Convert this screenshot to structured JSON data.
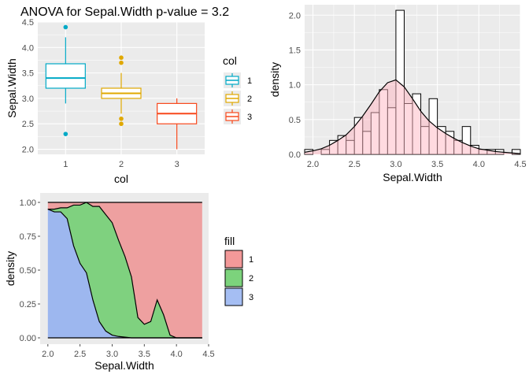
{
  "colors": {
    "panel_bg": "#EBEBEB",
    "grid": "#FFFFFF",
    "axis_text": "#4D4D4D",
    "title_text": "#000000",
    "group1": "#00A9C6",
    "group2": "#E0A800",
    "group3": "#F8481C",
    "fill1": "#F08080",
    "fill2": "#5BC85B",
    "fill3": "#8FAEF0",
    "hist_fill": "#FFFFFF",
    "density_fill": "#FFB6C1"
  },
  "chart_data": [
    {
      "type": "box",
      "title": "ANOVA for Sepal.Width p-value = 3.2",
      "xlabel": "col",
      "ylabel": "Sepal.Width",
      "categories": [
        "1",
        "2",
        "3"
      ],
      "ylim": [
        1.9,
        4.5
      ],
      "yticks": [
        "2.0",
        "2.5",
        "3.0",
        "3.5",
        "4.0",
        "4.5"
      ],
      "legend": {
        "title": "col",
        "labels": [
          "1",
          "2",
          "3"
        ],
        "position": "right"
      },
      "boxes": [
        {
          "group": "1",
          "lower_whisker": 2.9,
          "q1": 3.2,
          "median": 3.4,
          "q3": 3.68,
          "upper_whisker": 4.2,
          "outliers": [
            4.4,
            2.3
          ]
        },
        {
          "group": "2",
          "lower_whisker": 2.7,
          "q1": 3.0,
          "median": 3.1,
          "q3": 3.2,
          "upper_whisker": 3.5,
          "outliers": [
            3.8,
            3.7,
            2.6,
            2.5
          ]
        },
        {
          "group": "3",
          "lower_whisker": 2.0,
          "q1": 2.5,
          "median": 2.7,
          "q3": 2.9,
          "upper_whisker": 3.0,
          "outliers": []
        }
      ]
    },
    {
      "type": "histogram",
      "xlabel": "Sepal.Width",
      "ylabel": "density",
      "xlim": [
        1.9,
        4.5
      ],
      "ylim": [
        0,
        2.15
      ],
      "xticks": [
        "2.0",
        "2.5",
        "3.0",
        "3.5",
        "4.0",
        "4.5"
      ],
      "yticks": [
        "0.0",
        "0.5",
        "1.0",
        "1.5",
        "2.0"
      ],
      "bins": [
        {
          "x0": 1.9,
          "x1": 2.0,
          "density": 0.07
        },
        {
          "x0": 2.0,
          "x1": 2.1,
          "density": 0.0
        },
        {
          "x0": 2.1,
          "x1": 2.2,
          "density": 0.07
        },
        {
          "x0": 2.2,
          "x1": 2.3,
          "density": 0.2
        },
        {
          "x0": 2.3,
          "x1": 2.4,
          "density": 0.27
        },
        {
          "x0": 2.4,
          "x1": 2.5,
          "density": 0.2
        },
        {
          "x0": 2.5,
          "x1": 2.6,
          "density": 0.53
        },
        {
          "x0": 2.6,
          "x1": 2.7,
          "density": 0.33
        },
        {
          "x0": 2.7,
          "x1": 2.8,
          "density": 0.6
        },
        {
          "x0": 2.8,
          "x1": 2.9,
          "density": 0.93
        },
        {
          "x0": 2.9,
          "x1": 3.0,
          "density": 0.67
        },
        {
          "x0": 3.0,
          "x1": 3.1,
          "density": 2.07
        },
        {
          "x0": 3.1,
          "x1": 3.2,
          "density": 0.73
        },
        {
          "x0": 3.2,
          "x1": 3.3,
          "density": 0.87
        },
        {
          "x0": 3.3,
          "x1": 3.4,
          "density": 0.4
        },
        {
          "x0": 3.4,
          "x1": 3.5,
          "density": 0.8
        },
        {
          "x0": 3.5,
          "x1": 3.6,
          "density": 0.4
        },
        {
          "x0": 3.6,
          "x1": 3.7,
          "density": 0.33
        },
        {
          "x0": 3.7,
          "x1": 3.8,
          "density": 0.2
        },
        {
          "x0": 3.8,
          "x1": 3.9,
          "density": 0.4
        },
        {
          "x0": 3.9,
          "x1": 4.0,
          "density": 0.13
        },
        {
          "x0": 4.0,
          "x1": 4.1,
          "density": 0.07
        },
        {
          "x0": 4.1,
          "x1": 4.2,
          "density": 0.07
        },
        {
          "x0": 4.2,
          "x1": 4.3,
          "density": 0.07
        },
        {
          "x0": 4.3,
          "x1": 4.4,
          "density": 0.0
        },
        {
          "x0": 4.4,
          "x1": 4.5,
          "density": 0.07
        }
      ],
      "density_curve": {
        "x": [
          1.9,
          2.0,
          2.1,
          2.2,
          2.3,
          2.4,
          2.5,
          2.6,
          2.7,
          2.8,
          2.9,
          3.0,
          3.1,
          3.2,
          3.3,
          3.4,
          3.5,
          3.6,
          3.7,
          3.8,
          3.9,
          4.0,
          4.1,
          4.2,
          4.3,
          4.4,
          4.5
        ],
        "y": [
          0.03,
          0.05,
          0.08,
          0.13,
          0.2,
          0.28,
          0.4,
          0.55,
          0.72,
          0.9,
          1.03,
          1.07,
          0.97,
          0.8,
          0.62,
          0.48,
          0.38,
          0.3,
          0.23,
          0.17,
          0.12,
          0.08,
          0.06,
          0.04,
          0.03,
          0.02,
          0.01
        ]
      }
    },
    {
      "type": "area",
      "stacked": "fill",
      "xlabel": "Sepal.Width",
      "ylabel": "density",
      "xlim": [
        1.88,
        4.5
      ],
      "ylim": [
        0,
        1
      ],
      "xticks": [
        "2.0",
        "2.5",
        "3.0",
        "3.5",
        "4.0",
        "4.5"
      ],
      "yticks": [
        "0.00",
        "0.25",
        "0.50",
        "0.75",
        "1.00"
      ],
      "legend": {
        "title": "fill",
        "labels": [
          "1",
          "2",
          "3"
        ],
        "position": "right"
      },
      "x": [
        2.0,
        2.1,
        2.2,
        2.3,
        2.4,
        2.5,
        2.6,
        2.7,
        2.8,
        2.9,
        3.0,
        3.1,
        3.2,
        3.3,
        3.4,
        3.5,
        3.6,
        3.7,
        3.8,
        3.9,
        4.0,
        4.1,
        4.2,
        4.3,
        4.4
      ],
      "series": [
        {
          "name": "3",
          "values": [
            0.95,
            0.93,
            0.93,
            0.88,
            0.68,
            0.55,
            0.48,
            0.28,
            0.12,
            0.05,
            0.02,
            0.01,
            0.005,
            0,
            0,
            0,
            0,
            0,
            0,
            0,
            0,
            0,
            0,
            0,
            0
          ]
        },
        {
          "name": "2",
          "values": [
            0.0,
            0.02,
            0.03,
            0.08,
            0.3,
            0.43,
            0.52,
            0.69,
            0.85,
            0.86,
            0.83,
            0.71,
            0.6,
            0.45,
            0.15,
            0.1,
            0.12,
            0.28,
            0.17,
            0.02,
            0.0,
            0.0,
            0.0,
            0.0,
            0.0
          ]
        }
      ],
      "boundaries": {
        "x": [
          2.0,
          2.1,
          2.2,
          2.3,
          2.4,
          2.5,
          2.6,
          2.7,
          2.8,
          2.9,
          3.0,
          3.1,
          3.2,
          3.3,
          3.4,
          3.5,
          3.6,
          3.7,
          3.8,
          3.9,
          4.0,
          4.1,
          4.2,
          4.3,
          4.4
        ],
        "lower": [
          0.95,
          0.93,
          0.93,
          0.88,
          0.68,
          0.55,
          0.48,
          0.28,
          0.12,
          0.05,
          0.02,
          0.01,
          0.005,
          0,
          0,
          0,
          0,
          0,
          0,
          0,
          0,
          0,
          0,
          0,
          0
        ],
        "upper": [
          0.95,
          0.95,
          0.96,
          0.96,
          0.98,
          0.98,
          1.0,
          0.97,
          0.97,
          0.91,
          0.85,
          0.72,
          0.6,
          0.45,
          0.15,
          0.1,
          0.12,
          0.28,
          0.17,
          0.02,
          0.0,
          0.0,
          0.0,
          0.0,
          0.0
        ]
      }
    }
  ]
}
